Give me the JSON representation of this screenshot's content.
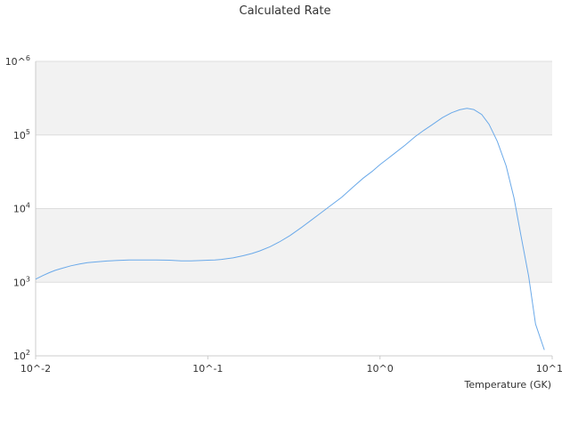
{
  "chart_data": {
    "type": "line",
    "title": "Calculated Rate",
    "xlabel": "Temperature (GK)",
    "ylabel": "",
    "x_scale": "log",
    "y_scale": "log",
    "xlim": [
      0.01,
      10
    ],
    "ylim": [
      100,
      1000000
    ],
    "x_tick_labels": [
      "10^-2",
      "10^-1",
      "10^0",
      "10^1"
    ],
    "y_tick_labels": [
      {
        "base": "10",
        "exp": "2"
      },
      {
        "base": "10",
        "exp": "3"
      },
      {
        "base": "10",
        "exp": "4"
      },
      {
        "base": "10",
        "exp": "5"
      },
      {
        "base": "10^",
        "exp": "6"
      }
    ],
    "grid": "alternating horizontal bands",
    "legend": "none",
    "colors": {
      "line": "#6aa9e9",
      "band": "#f2f2f2",
      "axis": "#cccccc",
      "text": "#333333"
    },
    "series": [
      {
        "x": [
          0.01,
          0.011,
          0.012,
          0.013,
          0.014,
          0.016,
          0.018,
          0.02,
          0.023,
          0.026,
          0.03,
          0.035,
          0.04,
          0.045,
          0.05,
          0.06,
          0.07,
          0.08,
          0.09,
          0.1,
          0.11,
          0.12,
          0.14,
          0.16,
          0.18,
          0.2,
          0.23,
          0.26,
          0.3,
          0.35,
          0.4,
          0.45,
          0.5,
          0.6,
          0.7,
          0.8,
          0.9,
          1.0,
          1.1,
          1.2,
          1.4,
          1.6,
          1.8,
          2.0,
          2.3,
          2.6,
          2.9,
          3.2,
          3.5,
          3.9,
          4.3,
          4.8,
          5.4,
          6.0,
          6.6,
          7.3,
          8.0,
          9.0
        ],
        "values": [
          1100,
          1230,
          1350,
          1450,
          1530,
          1670,
          1770,
          1840,
          1900,
          1940,
          1980,
          2000,
          2000,
          2000,
          2000,
          1990,
          1950,
          1950,
          1970,
          1990,
          2000,
          2040,
          2140,
          2290,
          2450,
          2660,
          3040,
          3520,
          4300,
          5550,
          7000,
          8600,
          10400,
          14300,
          19800,
          26000,
          32000,
          39600,
          47000,
          55000,
          73000,
          95000,
          116000,
          137000,
          172000,
          200000,
          220000,
          230000,
          222000,
          190000,
          140000,
          82000,
          38000,
          14000,
          4200,
          1200,
          270,
          120
        ]
      }
    ]
  }
}
